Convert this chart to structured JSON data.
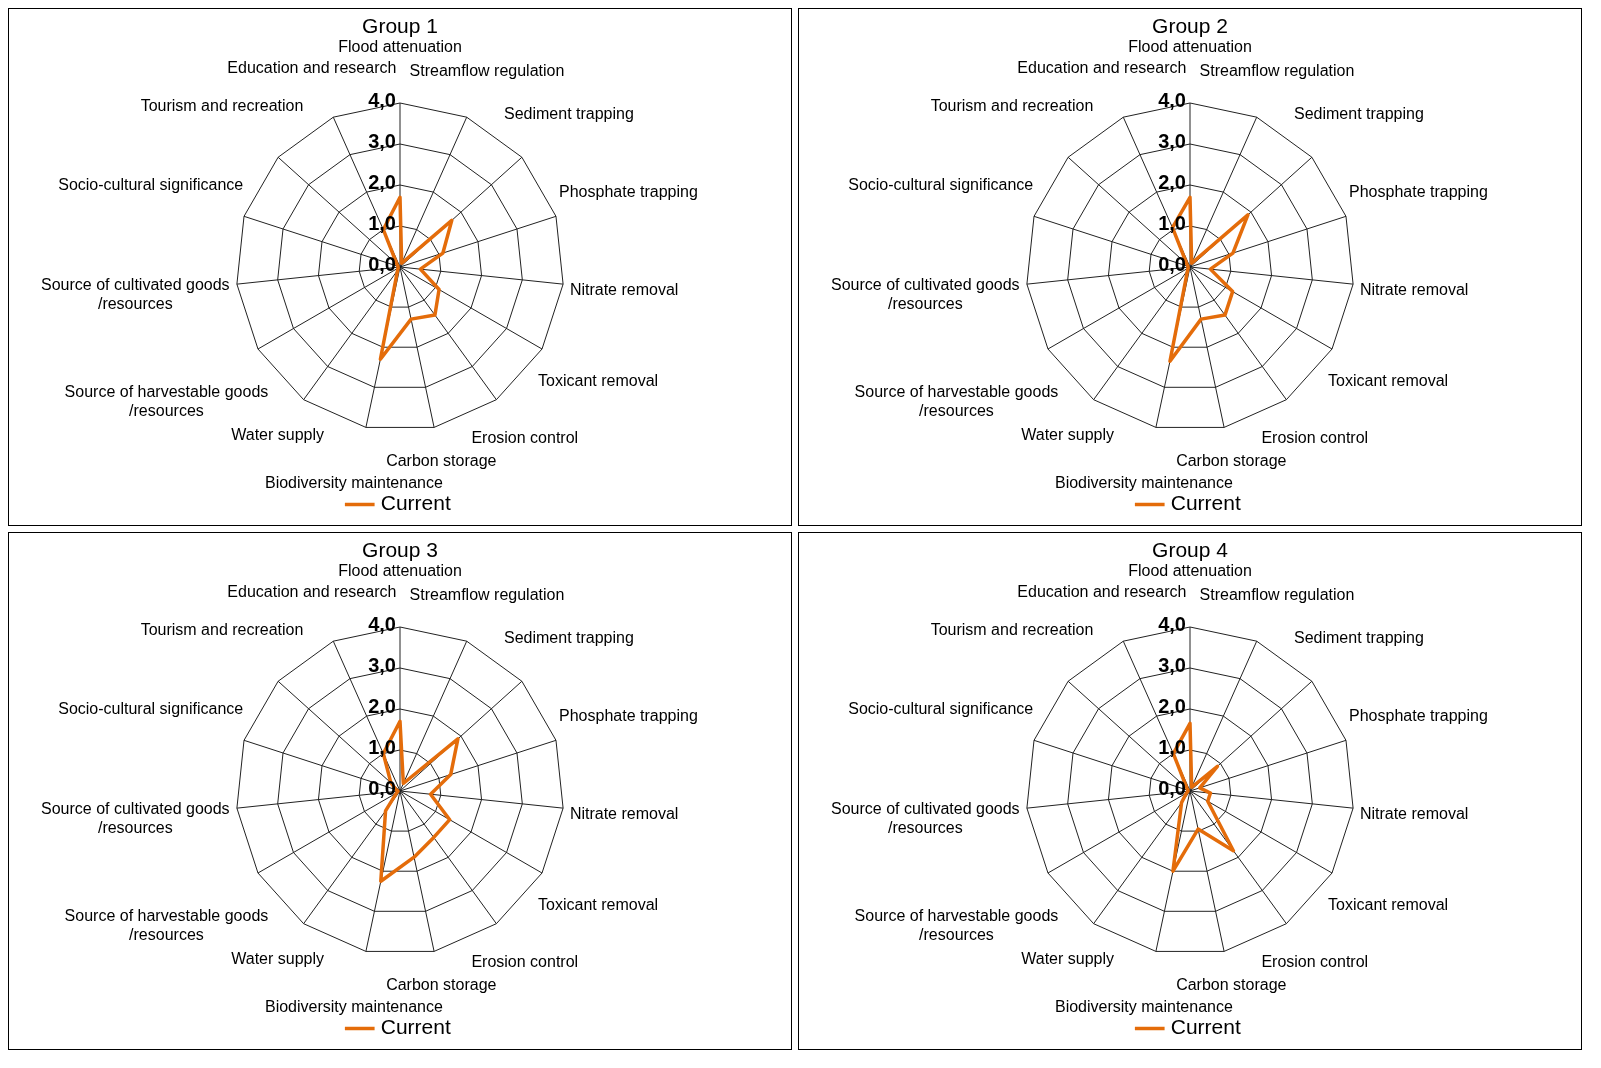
{
  "chart_data": [
    {
      "type": "radar",
      "title": "Group 1",
      "categories": [
        "Flood attenuation",
        "Streamflow regulation",
        "Sediment trapping",
        "Phosphate trapping",
        "Nitrate removal",
        "Toxicant removal",
        "Erosion control",
        "Carbon storage",
        "Biodiversity maintenance",
        "Water supply",
        "Source of harvestable goods /resources",
        "Source of cultivated goods /resources",
        "Socio-cultural significance",
        "Tourism and recreation",
        "Education and research"
      ],
      "ylim": [
        0,
        4
      ],
      "yticks": [
        {
          "value": 0,
          "label": "0,0"
        },
        {
          "value": 1,
          "label": "1,0"
        },
        {
          "value": 2,
          "label": "2,0"
        },
        {
          "value": 3,
          "label": "3,0"
        },
        {
          "value": 4,
          "label": "4,0"
        }
      ],
      "grid": true,
      "legend": "bottom",
      "marker": "none",
      "series": [
        {
          "name": "Current",
          "color": "#e46c0a",
          "values": [
            1.7,
            0.1,
            1.7,
            1.1,
            0.5,
            1.1,
            1.45,
            1.3,
            2.3,
            0.1,
            0.05,
            0.05,
            0.05,
            0.1,
            1.0
          ]
        }
      ]
    },
    {
      "type": "radar",
      "title": "Group 2",
      "categories": [
        "Flood attenuation",
        "Streamflow regulation",
        "Sediment trapping",
        "Phosphate trapping",
        "Nitrate removal",
        "Toxicant removal",
        "Erosion control",
        "Carbon storage",
        "Biodiversity maintenance",
        "Water supply",
        "Source of harvestable goods /resources",
        "Source of cultivated goods /resources",
        "Socio-cultural significance",
        "Tourism and recreation",
        "Education and research"
      ],
      "ylim": [
        0,
        4
      ],
      "yticks": [
        {
          "value": 0,
          "label": "0,0"
        },
        {
          "value": 1,
          "label": "1,0"
        },
        {
          "value": 2,
          "label": "2,0"
        },
        {
          "value": 3,
          "label": "3,0"
        },
        {
          "value": 4,
          "label": "4,0"
        }
      ],
      "grid": true,
      "legend": "bottom",
      "marker": "none",
      "series": [
        {
          "name": "Current",
          "color": "#e46c0a",
          "values": [
            1.7,
            0.1,
            1.9,
            1.1,
            0.5,
            1.2,
            1.45,
            1.3,
            2.35,
            0.1,
            0.05,
            0.05,
            0.05,
            0.1,
            1.05
          ]
        }
      ]
    },
    {
      "type": "radar",
      "title": "Group 3",
      "categories": [
        "Flood attenuation",
        "Streamflow regulation",
        "Sediment trapping",
        "Phosphate trapping",
        "Nitrate removal",
        "Toxicant removal",
        "Erosion control",
        "Carbon storage",
        "Biodiversity maintenance",
        "Water supply",
        "Source of harvestable goods /resources",
        "Source of cultivated goods /resources",
        "Socio-cultural significance",
        "Tourism and recreation",
        "Education and research"
      ],
      "ylim": [
        0,
        4
      ],
      "yticks": [
        {
          "value": 0,
          "label": "0,0"
        },
        {
          "value": 1,
          "label": "1,0"
        },
        {
          "value": 2,
          "label": "2,0"
        },
        {
          "value": 3,
          "label": "3,0"
        },
        {
          "value": 4,
          "label": "4,0"
        }
      ],
      "grid": true,
      "legend": "bottom",
      "marker": "none",
      "series": [
        {
          "name": "Current",
          "color": "#e46c0a",
          "values": [
            1.7,
            0.2,
            1.9,
            1.3,
            0.75,
            1.4,
            1.4,
            1.65,
            2.25,
            0.6,
            0.1,
            0.05,
            0.1,
            0.3,
            1.0
          ]
        }
      ]
    },
    {
      "type": "radar",
      "title": "Group 4",
      "categories": [
        "Flood attenuation",
        "Streamflow regulation",
        "Sediment trapping",
        "Phosphate trapping",
        "Nitrate removal",
        "Toxicant removal",
        "Erosion control",
        "Carbon storage",
        "Biodiversity maintenance",
        "Water supply",
        "Source of harvestable goods /resources",
        "Source of cultivated goods /resources",
        "Socio-cultural significance",
        "Tourism and recreation",
        "Education and research"
      ],
      "ylim": [
        0,
        4
      ],
      "yticks": [
        {
          "value": 0,
          "label": "0,0"
        },
        {
          "value": 1,
          "label": "1,0"
        },
        {
          "value": 2,
          "label": "2,0"
        },
        {
          "value": 3,
          "label": "3,0"
        },
        {
          "value": 4,
          "label": "4,0"
        }
      ],
      "grid": true,
      "legend": "bottom",
      "marker": "none",
      "series": [
        {
          "name": "Current",
          "color": "#e46c0a",
          "values": [
            1.65,
            0.1,
            0.9,
            0.25,
            0.5,
            0.5,
            1.8,
            0.95,
            2.0,
            0.35,
            0.1,
            0.05,
            0.05,
            0.1,
            1.0
          ]
        }
      ]
    }
  ]
}
